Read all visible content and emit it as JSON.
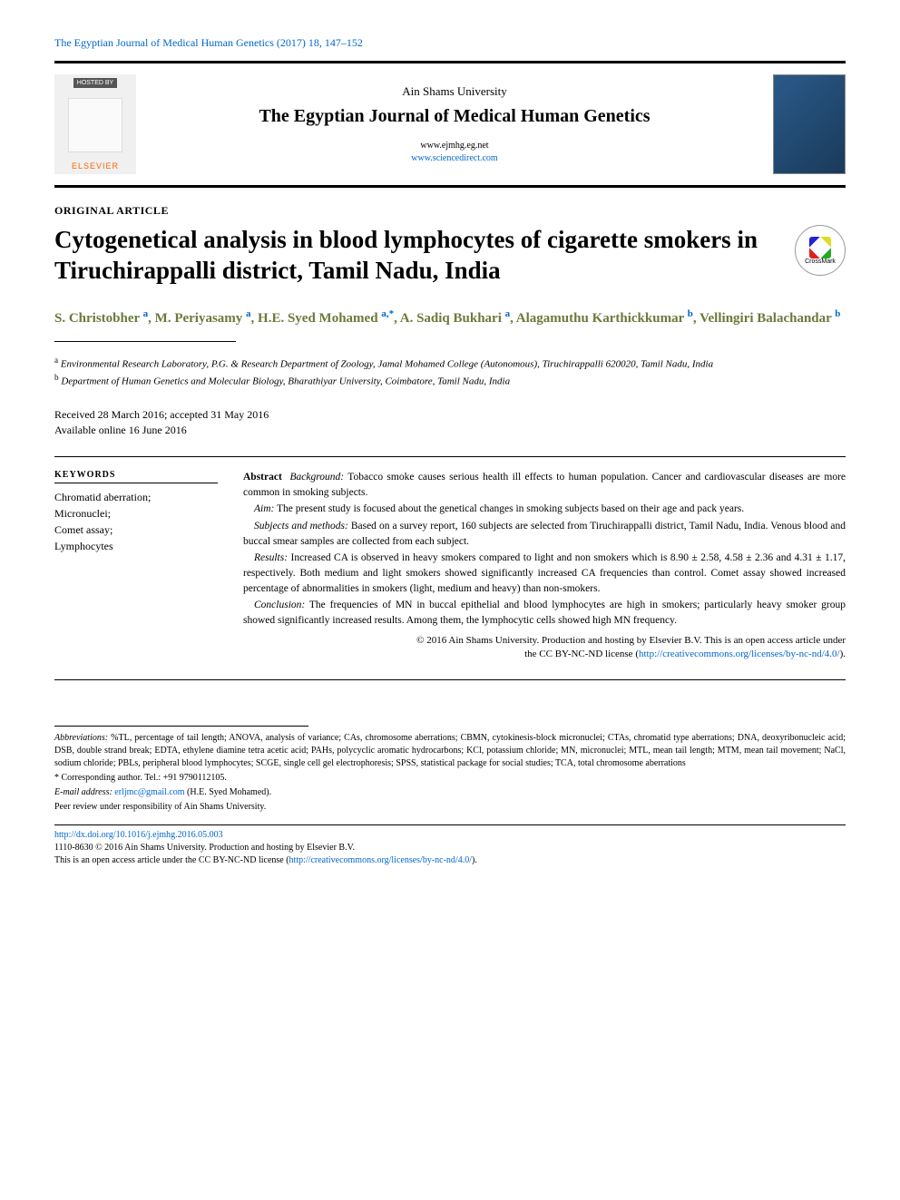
{
  "citation": "The Egyptian Journal of Medical Human Genetics (2017) 18, 147–152",
  "header": {
    "hosted_by": "HOSTED BY",
    "publisher": "ELSEVIER",
    "university": "Ain Shams University",
    "journal_title": "The Egyptian Journal of Medical Human Genetics",
    "url1": "www.ejmhg.eg.net",
    "url2": "www.sciencedirect.com"
  },
  "article_type": "ORIGINAL ARTICLE",
  "title": "Cytogenetical analysis in blood lymphocytes of cigarette smokers in Tiruchirappalli district, Tamil Nadu, India",
  "crossmark": "CrossMark",
  "authors_html": "S. Christobher <sup>a</sup>, M. Periyasamy <sup>a</sup>, H.E. Syed Mohamed <sup>a,*</sup>, A. Sadiq Bukhari <sup>a</sup>, Alagamuthu Karthickkumar <sup>b</sup>, Vellingiri Balachandar <sup>b</sup>",
  "affiliations": {
    "a": "Environmental Research Laboratory, P.G. & Research Department of Zoology, Jamal Mohamed College (Autonomous), Tiruchirappalli 620020, Tamil Nadu, India",
    "b": "Department of Human Genetics and Molecular Biology, Bharathiyar University, Coimbatore, Tamil Nadu, India"
  },
  "dates": {
    "received_accepted": "Received 28 March 2016; accepted 31 May 2016",
    "online": "Available online 16 June 2016"
  },
  "keywords": {
    "header": "KEYWORDS",
    "items": "Chromatid aberration;\nMicronuclei;\nComet assay;\nLymphocytes"
  },
  "abstract": {
    "label": "Abstract",
    "background_label": "Background:",
    "background": "Tobacco smoke causes serious health ill effects to human population. Cancer and cardiovascular diseases are more common in smoking subjects.",
    "aim_label": "Aim:",
    "aim": "The present study is focused about the genetical changes in smoking subjects based on their age and pack years.",
    "subjects_label": "Subjects and methods:",
    "subjects": "Based on a survey report, 160 subjects are selected from Tiruchirappalli district, Tamil Nadu, India. Venous blood and buccal smear samples are collected from each subject.",
    "results_label": "Results:",
    "results": "Increased CA is observed in heavy smokers compared to light and non smokers which is 8.90 ± 2.58, 4.58 ± 2.36 and 4.31 ± 1.17, respectively. Both medium and light smokers showed significantly increased CA frequencies than control. Comet assay showed increased percentage of abnormalities in smokers (light, medium and heavy) than non-smokers.",
    "conclusion_label": "Conclusion:",
    "conclusion": "The frequencies of MN in buccal epithelial and blood lymphocytes are high in smokers; particularly heavy smoker group showed significantly increased results. Among them, the lymphocytic cells showed high MN frequency."
  },
  "copyright": {
    "line1": "© 2016 Ain Shams University. Production and hosting by Elsevier B.V. This is an open access article under",
    "line2_prefix": "the CC BY-NC-ND license (",
    "license_url": "http://creativecommons.org/licenses/by-nc-nd/4.0/",
    "line2_suffix": ")."
  },
  "footer": {
    "abbrev_label": "Abbreviations:",
    "abbrev": "%TL, percentage of tail length; ANOVA, analysis of variance; CAs, chromosome aberrations; CBMN, cytokinesis-block micronuclei; CTAs, chromatid type aberrations; DNA, deoxyribonucleic acid; DSB, double strand break; EDTA, ethylene diamine tetra acetic acid; PAHs, polycyclic aromatic hydrocarbons; KCl, potassium chloride; MN, micronuclei; MTL, mean tail length; MTM, mean tail movement; NaCl, sodium chloride; PBLs, peripheral blood lymphocytes; SCGE, single cell gel electrophoresis; SPSS, statistical package for social studies; TCA, total chromosome aberrations",
    "corresponding": "* Corresponding author. Tel.: +91 9790112105.",
    "email_label": "E-mail address:",
    "email": "erljmc@gmail.com",
    "email_name": "(H.E. Syed Mohamed).",
    "peer": "Peer review under responsibility of Ain Shams University.",
    "doi": "http://dx.doi.org/10.1016/j.ejmhg.2016.05.003",
    "issn": "1110-8630 © 2016 Ain Shams University. Production and hosting by Elsevier B.V.",
    "license_prefix": "This is an open access article under the CC BY-NC-ND license (",
    "license_url": "http://creativecommons.org/licenses/by-nc-nd/4.0/",
    "license_suffix": ")."
  },
  "colors": {
    "link": "#0066cc",
    "author": "#6b7a3a",
    "publisher": "#ff6600"
  }
}
